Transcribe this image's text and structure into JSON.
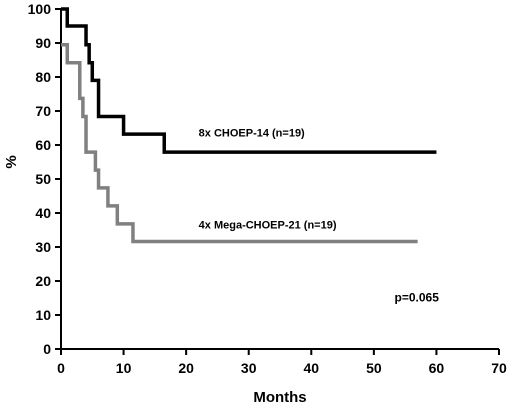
{
  "chart_data": {
    "type": "line",
    "step": true,
    "xlabel": "Months",
    "ylabel": "%",
    "xlim": [
      0,
      70
    ],
    "ylim": [
      0,
      100
    ],
    "xticks": [
      0,
      10,
      20,
      30,
      40,
      50,
      60,
      70
    ],
    "yticks": [
      0,
      10,
      20,
      30,
      40,
      50,
      60,
      70,
      80,
      90,
      100
    ],
    "grid": false,
    "legend": "none",
    "series": [
      {
        "label": "8x CHOEP-14 (n=19)",
        "color": "#000000",
        "x": [
          0,
          1,
          4,
          4.5,
          5,
          6,
          10,
          16.5,
          60
        ],
        "y": [
          100,
          95,
          89.5,
          84.2,
          79,
          68.4,
          63.2,
          57.9,
          57.9
        ]
      },
      {
        "label": "4x Mega-CHOEP-21 (n=19)",
        "color": "#808080",
        "x": [
          0,
          1,
          3,
          3.5,
          4,
          5.5,
          6,
          7.5,
          9,
          11.5,
          57
        ],
        "y": [
          89.5,
          84.2,
          73.7,
          68.4,
          57.9,
          52.6,
          47.4,
          42.1,
          36.8,
          31.6,
          31.6
        ]
      }
    ],
    "annotations": [
      "p=0.065"
    ]
  }
}
